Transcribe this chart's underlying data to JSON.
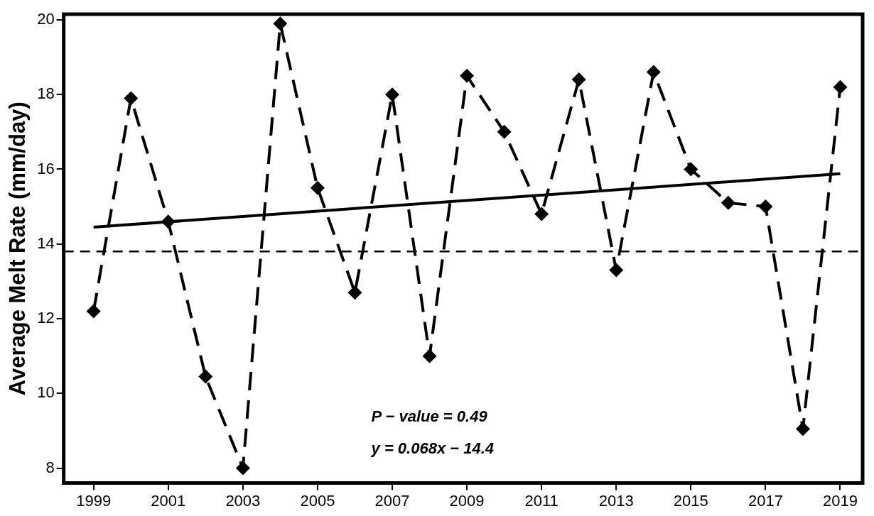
{
  "chart_data": {
    "type": "line",
    "ylabel": "Average Melt Rate (mm/day)",
    "x": [
      1999,
      2000,
      2001,
      2002,
      2003,
      2004,
      2005,
      2006,
      2007,
      2008,
      2009,
      2010,
      2011,
      2012,
      2013,
      2014,
      2015,
      2016,
      2017,
      2018,
      2019
    ],
    "series": [
      {
        "color": "#000000",
        "marker": "diamond",
        "line_style": "dashed",
        "values": [
          12.2,
          17.9,
          14.6,
          10.45,
          8.0,
          19.9,
          15.5,
          12.7,
          18.0,
          11.0,
          18.5,
          17.0,
          14.8,
          18.4,
          13.3,
          18.6,
          16.0,
          15.1,
          15.0,
          9.05,
          18.2
        ]
      },
      {
        "type": "line",
        "color": "#000000",
        "marker": "none",
        "line_style": "solid",
        "x": [
          1999,
          2019
        ],
        "values": [
          14.45,
          15.88
        ]
      }
    ],
    "ref_lines": [
      {
        "axis": "y",
        "value": 13.8,
        "line_style": "dashed",
        "color": "#000000"
      }
    ],
    "annotations": [
      "P − value = 0.49",
      "y = 0.068x − 14.4"
    ],
    "xlim": [
      1998.2,
      2019.6
    ],
    "xticks": [
      1999,
      2001,
      2003,
      2005,
      2007,
      2009,
      2011,
      2013,
      2015,
      2017,
      2019
    ],
    "ylim": [
      7.6,
      20.15
    ],
    "yticks": [
      8,
      10,
      12,
      14,
      16,
      18,
      20
    ],
    "grid": false,
    "legend": false
  }
}
